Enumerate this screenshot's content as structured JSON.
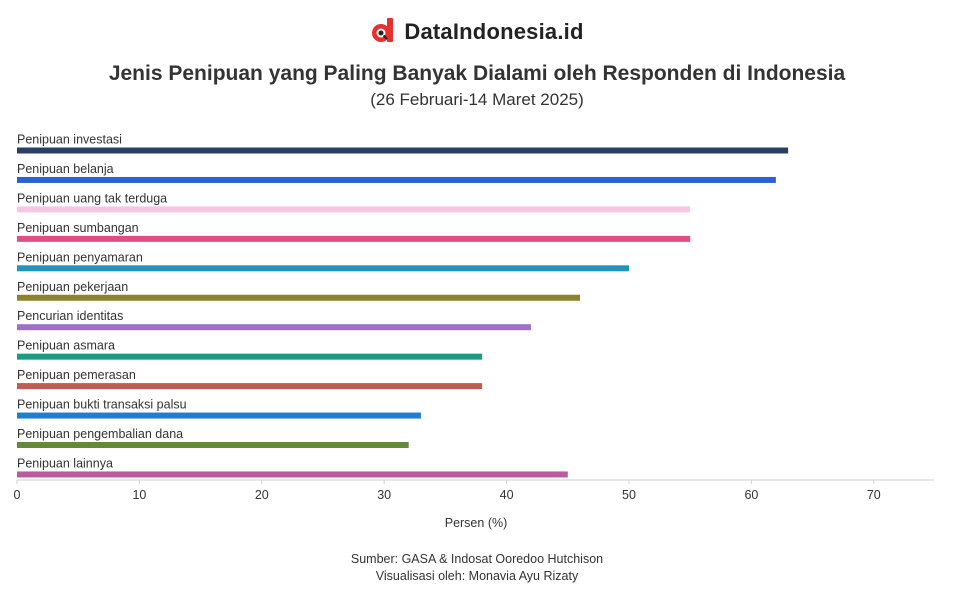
{
  "header": {
    "brand": "DataIndonesia.id",
    "logo_color": "#e8302f"
  },
  "chart_data": {
    "type": "bar",
    "orientation": "horizontal",
    "title": "Jenis Penipuan yang Paling Banyak Dialami oleh Responden di Indonesia",
    "subtitle": "(26 Februari-14 Maret 2025)",
    "xlabel": "Persen (%)",
    "ylabel": "",
    "xlim": [
      0,
      75
    ],
    "xticks": [
      0,
      10,
      20,
      30,
      40,
      50,
      60,
      70
    ],
    "grid": false,
    "legend": "none",
    "categories": [
      "Penipuan investasi",
      "Penipuan belanja",
      "Penipuan uang tak terduga",
      "Penipuan sumbangan",
      "Penipuan penyamaran",
      "Penipuan pekerjaan",
      "Pencurian identitas",
      "Penipuan asmara",
      "Penipuan pemerasan",
      "Penipuan bukti transaksi palsu",
      "Penipuan pengembalian dana",
      "Penipuan lainnya"
    ],
    "values": [
      63,
      62,
      55,
      55,
      50,
      46,
      42,
      38,
      38,
      33,
      32,
      45
    ],
    "colors": [
      "#2a3f66",
      "#2a62d3",
      "#f7c6e2",
      "#e34c84",
      "#1f95bd",
      "#8c8428",
      "#a070c4",
      "#1e9a82",
      "#c05c51",
      "#1f7ed1",
      "#628a3a",
      "#bb5aa0"
    ]
  },
  "footer": {
    "source": "Sumber: GASA & Indosat Ooredoo Hutchison",
    "credit": "Visualisasi oleh: Monavia Ayu Rizaty"
  }
}
